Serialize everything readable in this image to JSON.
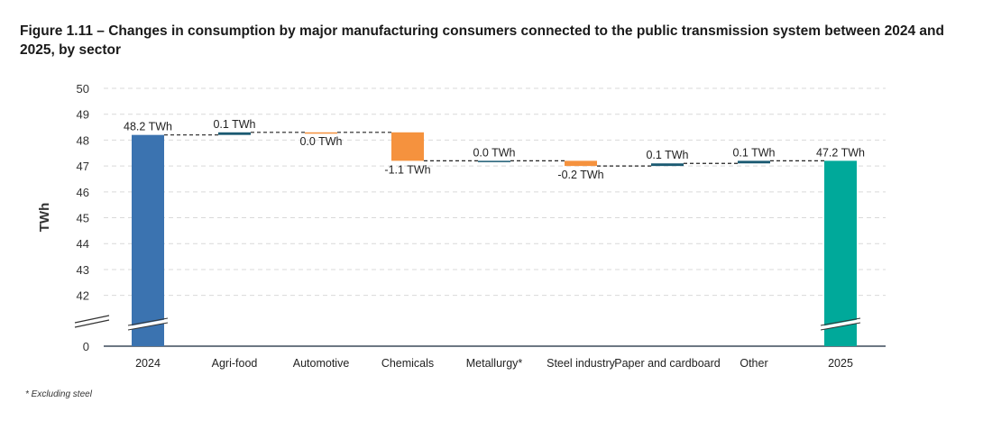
{
  "chart_data": {
    "type": "waterfall",
    "title": "Figure 1.11 – Changes in consumption by major manufacturing consumers connected to the public transmission system between 2024 and 2025, by sector",
    "ylabel": "TWh",
    "xlabel": "",
    "categories": [
      "2024",
      "Agri-food",
      "Automotive",
      "Chemicals",
      "Metallurgy*",
      "Steel industry",
      "Paper and cardboard",
      "Other",
      "2025"
    ],
    "values": [
      48.2,
      0.1,
      0.0,
      -1.1,
      0.0,
      -0.2,
      0.1,
      0.1,
      47.2
    ],
    "kinds": [
      "total",
      "delta",
      "delta",
      "delta",
      "delta",
      "delta",
      "delta",
      "delta",
      "total"
    ],
    "data_labels": [
      "48.2 TWh",
      "0.1 TWh",
      "0.0 TWh",
      "-1.1 TWh",
      "0.0 TWh",
      "-0.2 TWh",
      "0.1 TWh",
      "0.1 TWh",
      "47.2 TWh"
    ],
    "y_ticks": [
      0,
      42,
      43,
      44,
      45,
      46,
      47,
      48,
      49,
      50
    ],
    "ylim": [
      41.5,
      50
    ],
    "axis_break": true,
    "grid": true,
    "colors": {
      "start": "#3b73b0",
      "end": "#00a99a",
      "increase": "#1b5a72",
      "decrease": "#f5923e",
      "connector": "#222222",
      "grid": "#d9d9d9"
    },
    "footnote": "* Excluding steel"
  }
}
